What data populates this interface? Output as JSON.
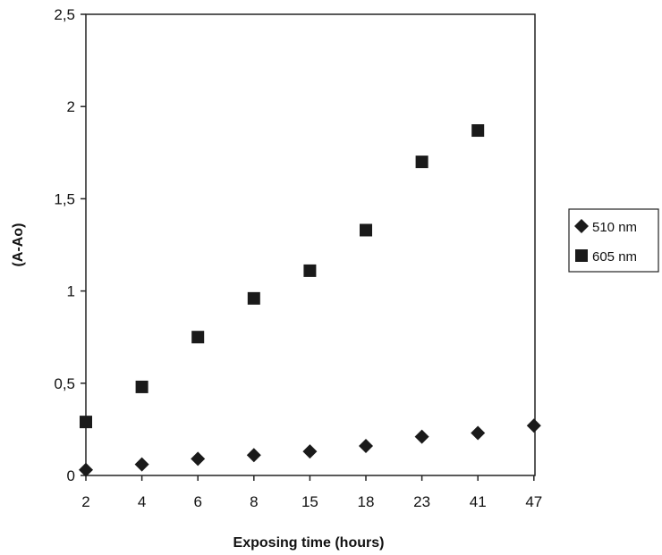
{
  "chart_data": {
    "type": "scatter",
    "title": "",
    "xlabel": "Exposing time (hours)",
    "ylabel": "(A-Ao)",
    "categories": [
      "2",
      "4",
      "6",
      "8",
      "15",
      "18",
      "23",
      "41",
      "47"
    ],
    "ylim": [
      0,
      2.5
    ],
    "yticks": [
      "0",
      "0,5",
      "1",
      "1,5",
      "2",
      "2,5"
    ],
    "ytick_values": [
      0,
      0.5,
      1,
      1.5,
      2,
      2.5
    ],
    "grid": false,
    "legend_position": "right",
    "series": [
      {
        "name": "510 nm",
        "marker": "diamond",
        "color": "#1a1a1a",
        "values": [
          0.03,
          0.06,
          0.09,
          0.11,
          0.13,
          0.16,
          0.21,
          0.23,
          0.27
        ]
      },
      {
        "name": "605 nm",
        "marker": "square",
        "color": "#1a1a1a",
        "values": [
          0.29,
          0.48,
          0.75,
          0.96,
          1.11,
          1.33,
          1.7,
          1.87,
          null
        ]
      }
    ]
  }
}
